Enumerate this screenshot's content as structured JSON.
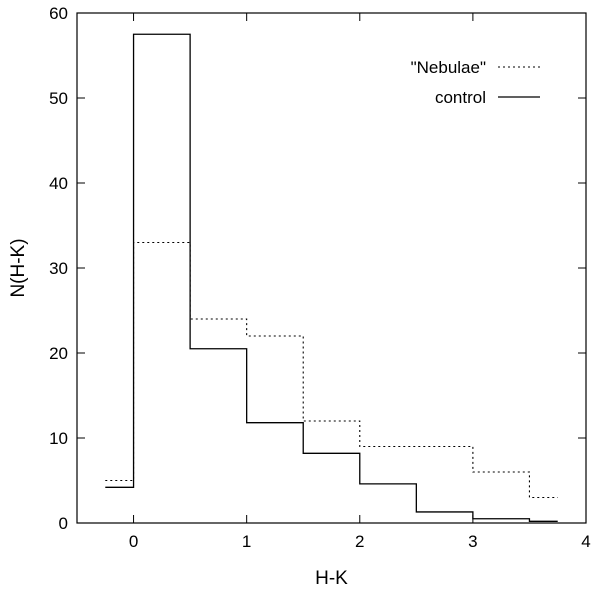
{
  "chart_data": {
    "type": "step",
    "title": "",
    "xlabel": "H-K",
    "ylabel": "N(H-K)",
    "xlim": [
      -0.5,
      4
    ],
    "ylim": [
      0,
      60
    ],
    "xticks": [
      0,
      1,
      2,
      3,
      4
    ],
    "yticks": [
      0,
      10,
      20,
      30,
      40,
      50,
      60
    ],
    "grid": false,
    "legend_position": "top-right",
    "bin_edges": [
      -0.25,
      0,
      0.5,
      1,
      1.5,
      2,
      2.5,
      3,
      3.5,
      3.75
    ],
    "series": [
      {
        "name": "\"Nebulae\"",
        "style": "dotted",
        "values": [
          5,
          33,
          24,
          22,
          12,
          9,
          9,
          6,
          3
        ]
      },
      {
        "name": "control",
        "style": "solid",
        "values": [
          4.2,
          57.5,
          20.5,
          11.8,
          8.2,
          4.6,
          1.3,
          0.5,
          0.2
        ]
      }
    ]
  }
}
